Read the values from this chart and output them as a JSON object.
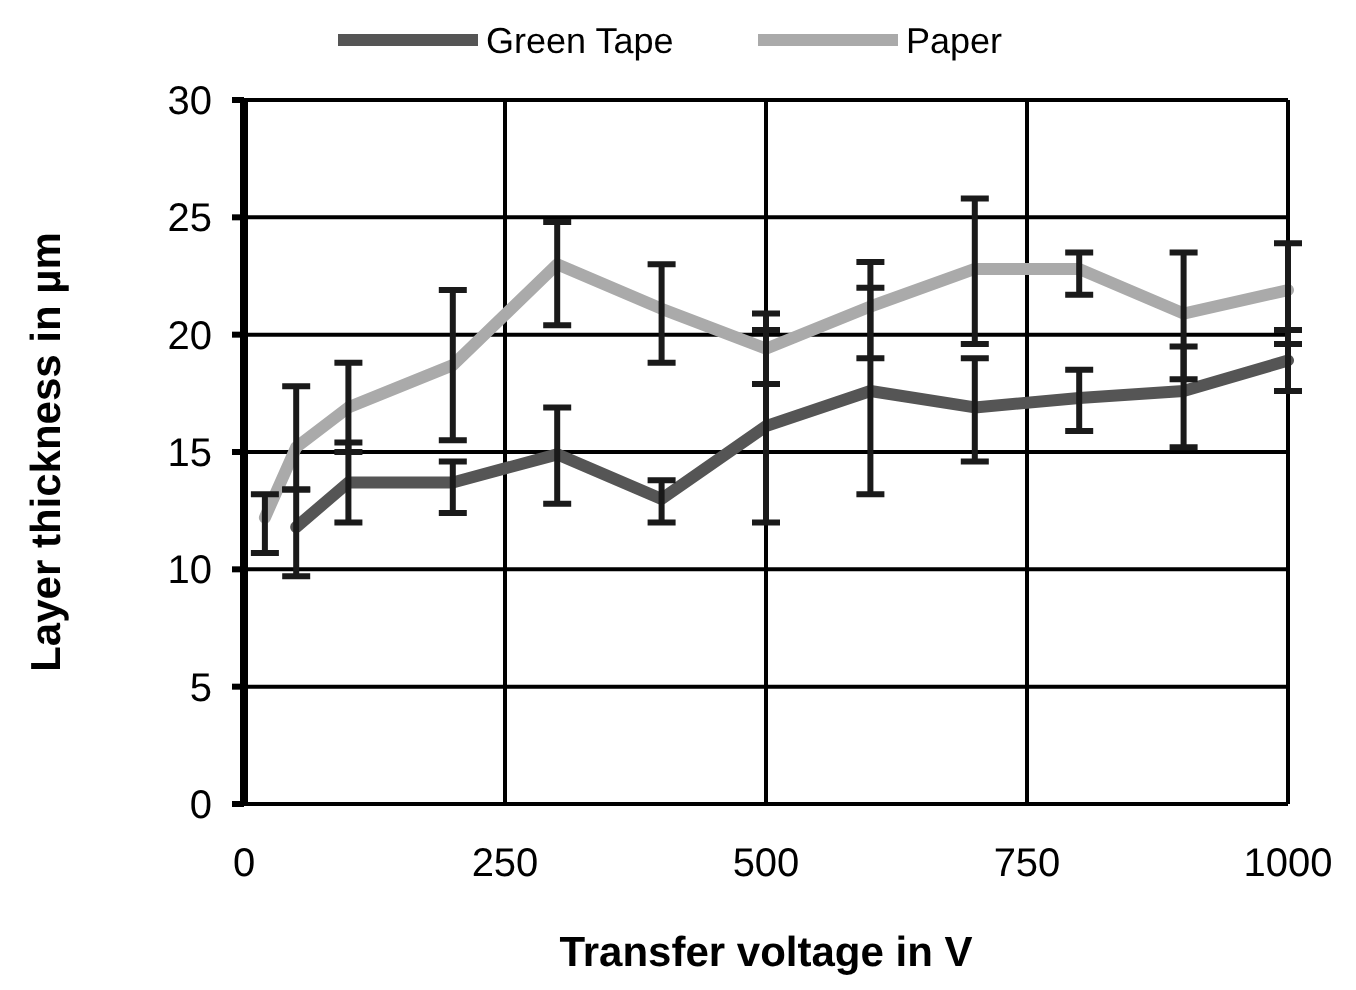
{
  "chart_data": {
    "type": "line",
    "xlabel": "Transfer voltage in V",
    "ylabel": "Layer  thickness in µm",
    "xlim": [
      0,
      1000
    ],
    "xticks": [
      0,
      250,
      500,
      750,
      1000
    ],
    "ylim": [
      0,
      30
    ],
    "yticks": [
      0,
      5,
      10,
      15,
      20,
      25,
      30
    ],
    "grid": true,
    "legend": "top",
    "marker": "none",
    "series": [
      {
        "name": "Green Tape",
        "color": "#555555",
        "x": [
          50,
          100,
          200,
          300,
          400,
          500,
          600,
          700,
          800,
          900,
          1000
        ],
        "values": [
          11.8,
          13.7,
          13.7,
          14.9,
          13.0,
          16.1,
          17.6,
          16.9,
          17.3,
          17.6,
          18.9
        ],
        "errors": [
          [
            9.7,
            13.4
          ],
          [
            12.0,
            15.4
          ],
          [
            12.4,
            14.6
          ],
          [
            12.8,
            16.9
          ],
          [
            12.0,
            13.8
          ],
          [
            12.0,
            20.2
          ],
          [
            13.2,
            22.0
          ],
          [
            14.6,
            19.0
          ],
          [
            15.9,
            18.5
          ],
          [
            15.2,
            19.5
          ],
          [
            17.6,
            20.2
          ]
        ]
      },
      {
        "name": "Paper",
        "color": "#aaaaaa",
        "x": [
          20,
          50,
          100,
          200,
          300,
          400,
          500,
          600,
          700,
          800,
          900,
          1000
        ],
        "values": [
          12.2,
          15.2,
          16.9,
          18.7,
          23.0,
          21.1,
          19.4,
          21.2,
          22.8,
          22.8,
          20.9,
          21.9
        ],
        "errors": [
          [
            10.7,
            13.2
          ],
          [
            13.4,
            17.8
          ],
          [
            15.0,
            18.8
          ],
          [
            15.5,
            21.9
          ],
          [
            20.4,
            24.8
          ],
          [
            18.8,
            23.0
          ],
          [
            17.9,
            20.9
          ],
          [
            19.0,
            23.1
          ],
          [
            19.6,
            25.8
          ],
          [
            21.7,
            23.5
          ],
          [
            18.1,
            23.5
          ],
          [
            19.6,
            23.9
          ]
        ]
      }
    ]
  }
}
